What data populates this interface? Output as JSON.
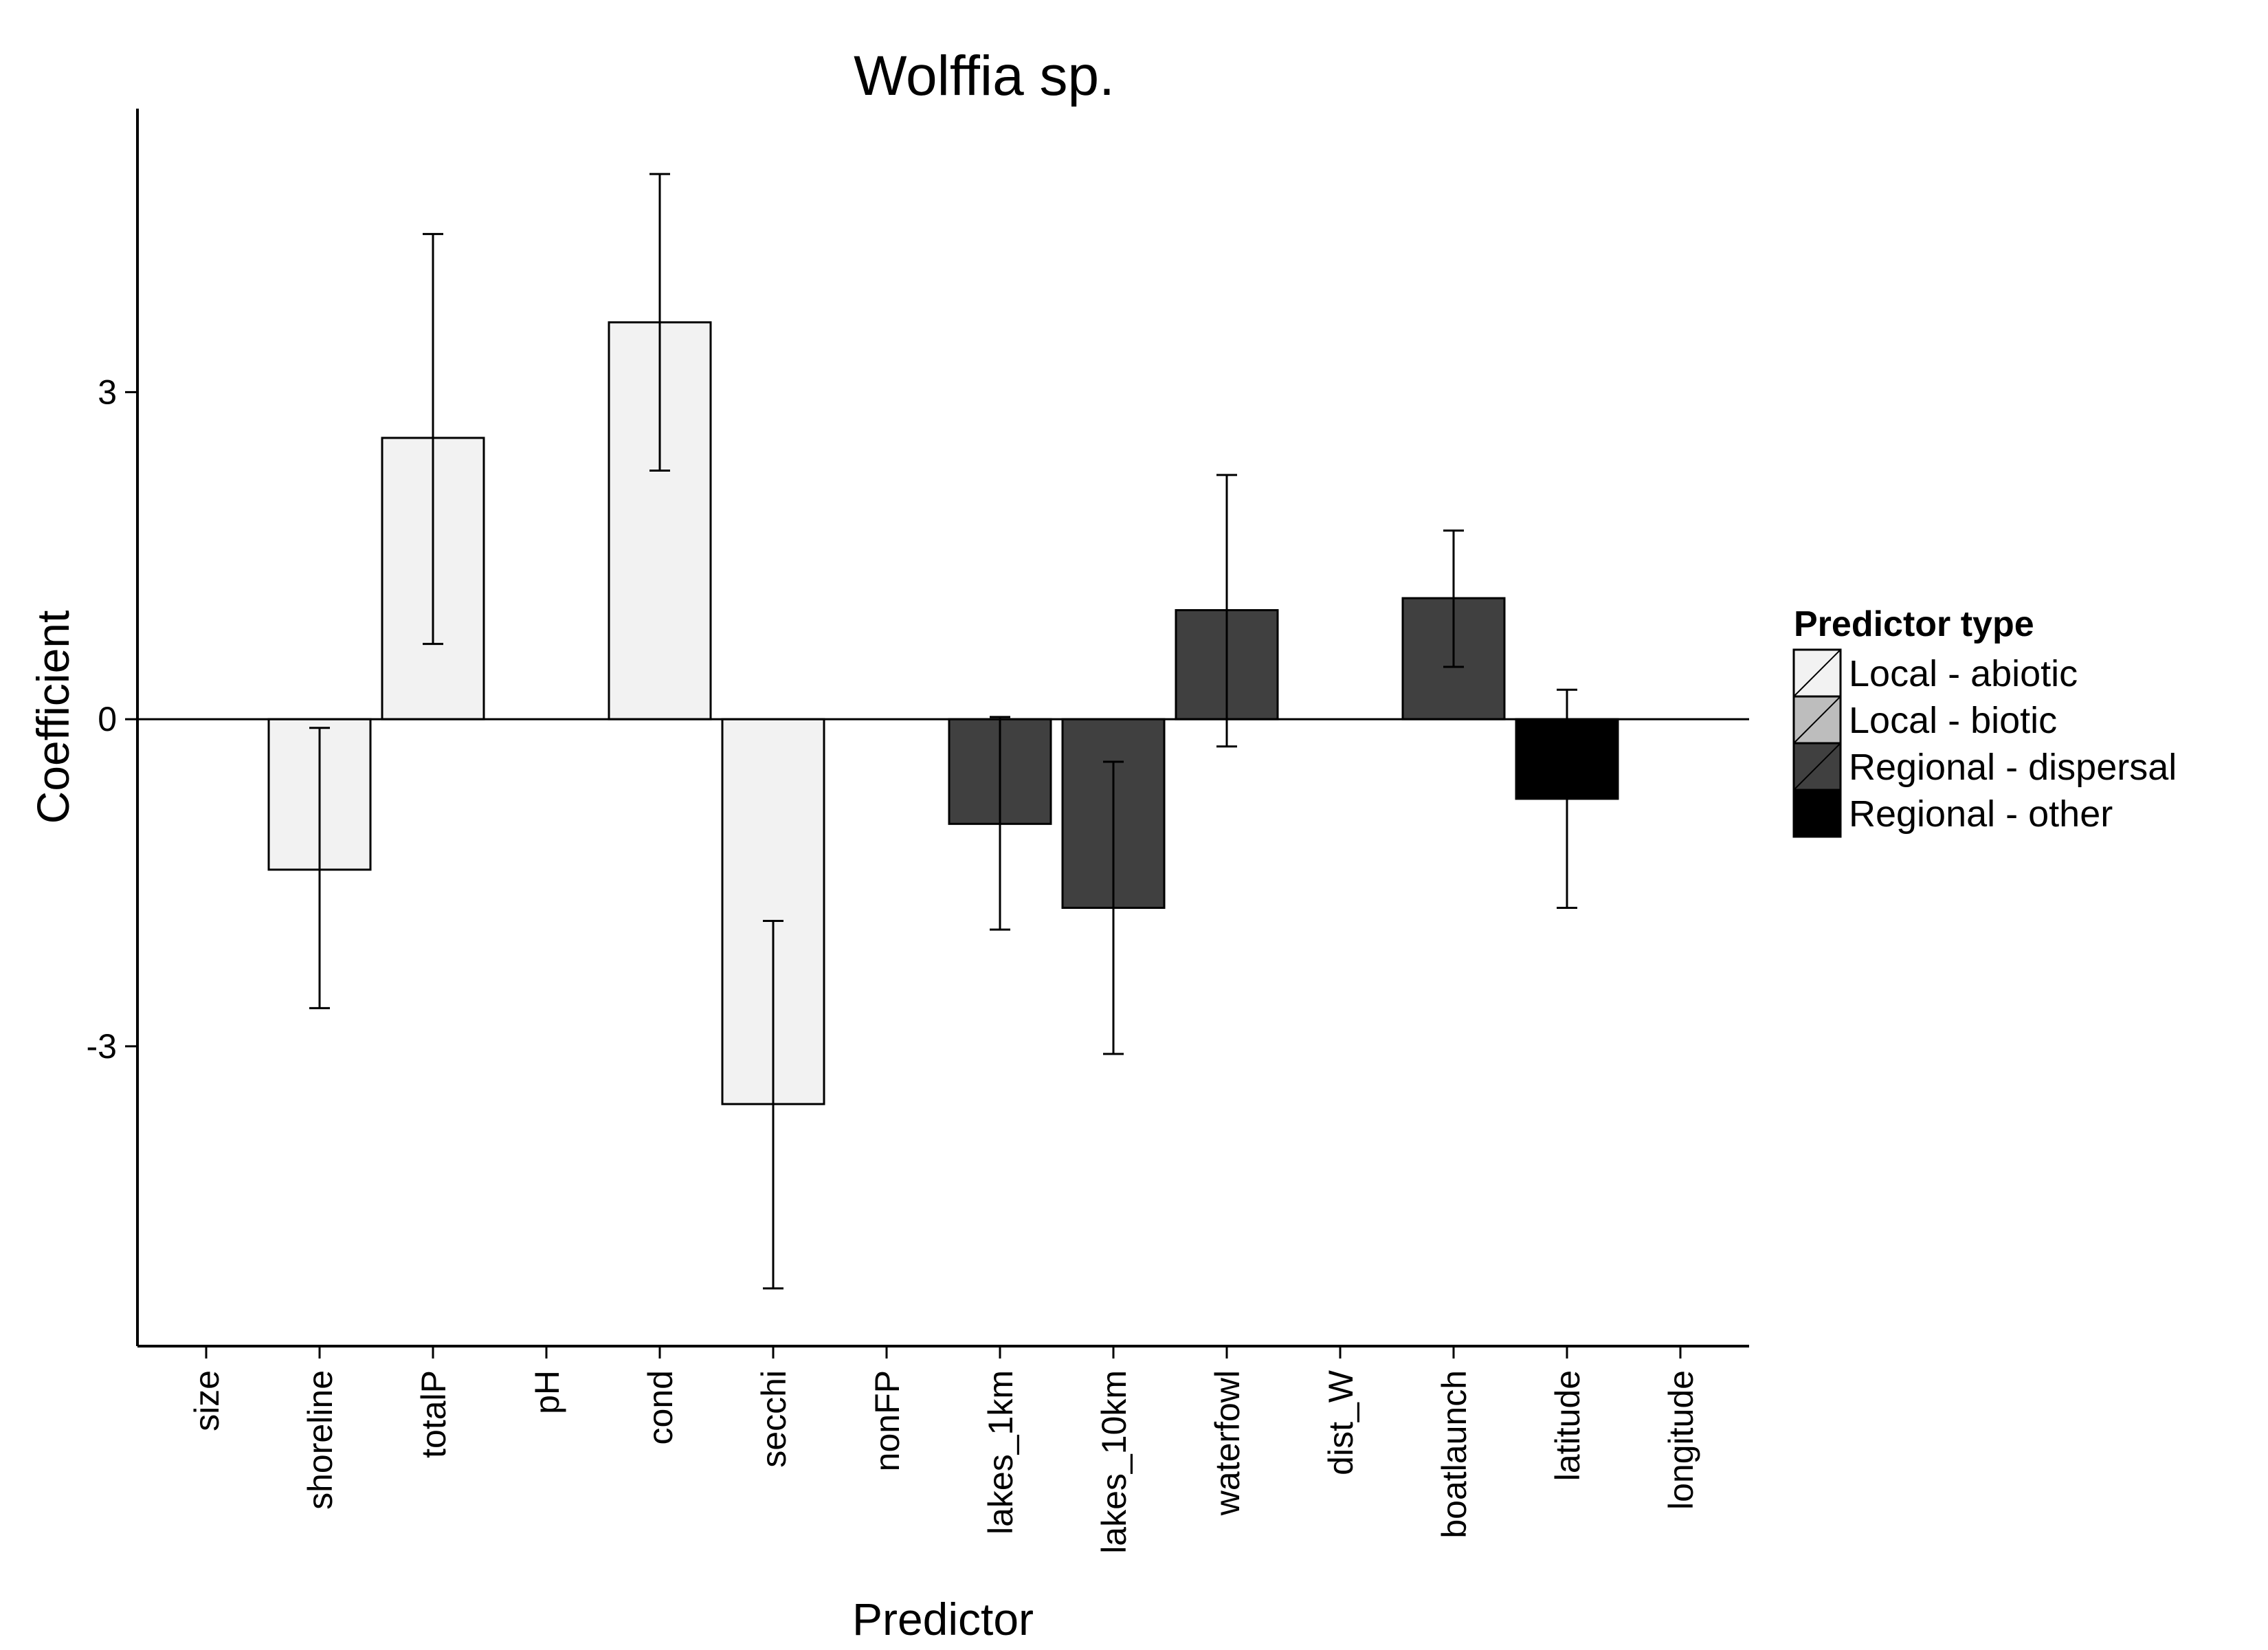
{
  "chart_data": {
    "type": "bar",
    "title": "Wolffia sp.",
    "xlabel": "Predictor",
    "ylabel": "Coefficient",
    "ylim": [
      -5.75,
      5.6
    ],
    "yticks": [
      -3,
      0,
      3
    ],
    "ytick_labels": [
      "-3",
      "0",
      "3"
    ],
    "grid": false,
    "legend_position": "right",
    "categories": [
      "size",
      "shoreline",
      "totalP",
      "pH",
      "cond",
      "secchi",
      "nonFP",
      "lakes_1km",
      "lakes_10km",
      "waterfowl",
      "dist_W",
      "boatlaunch",
      "latitude",
      "longitude"
    ],
    "values": [
      null,
      -1.38,
      2.58,
      null,
      3.64,
      -3.53,
      null,
      -0.96,
      -1.73,
      1.0,
      null,
      1.11,
      -0.73,
      null
    ],
    "error_low": [
      null,
      -2.65,
      0.69,
      null,
      2.28,
      -5.22,
      null,
      -1.93,
      -3.07,
      -0.25,
      null,
      0.48,
      -1.73,
      null
    ],
    "error_high": [
      null,
      -0.08,
      4.45,
      null,
      5.0,
      -1.85,
      null,
      0.02,
      -0.39,
      2.24,
      null,
      1.73,
      0.27,
      null
    ],
    "predictor_type": [
      "Local - abiotic",
      "Local - abiotic",
      "Local - abiotic",
      "Local - abiotic",
      "Local - abiotic",
      "Local - abiotic",
      "Local - biotic",
      "Regional - dispersal",
      "Regional - dispersal",
      "Regional - dispersal",
      "Regional - dispersal",
      "Regional - dispersal",
      "Regional - other",
      "Regional - other"
    ],
    "legend": {
      "title": "Predictor type",
      "entries": [
        {
          "label": "Local - abiotic",
          "color": "#f2f2f2"
        },
        {
          "label": "Local - biotic",
          "color": "#bdbdbd"
        },
        {
          "label": "Regional - dispersal",
          "color": "#404040"
        },
        {
          "label": "Regional - other",
          "color": "#000000"
        }
      ]
    }
  }
}
